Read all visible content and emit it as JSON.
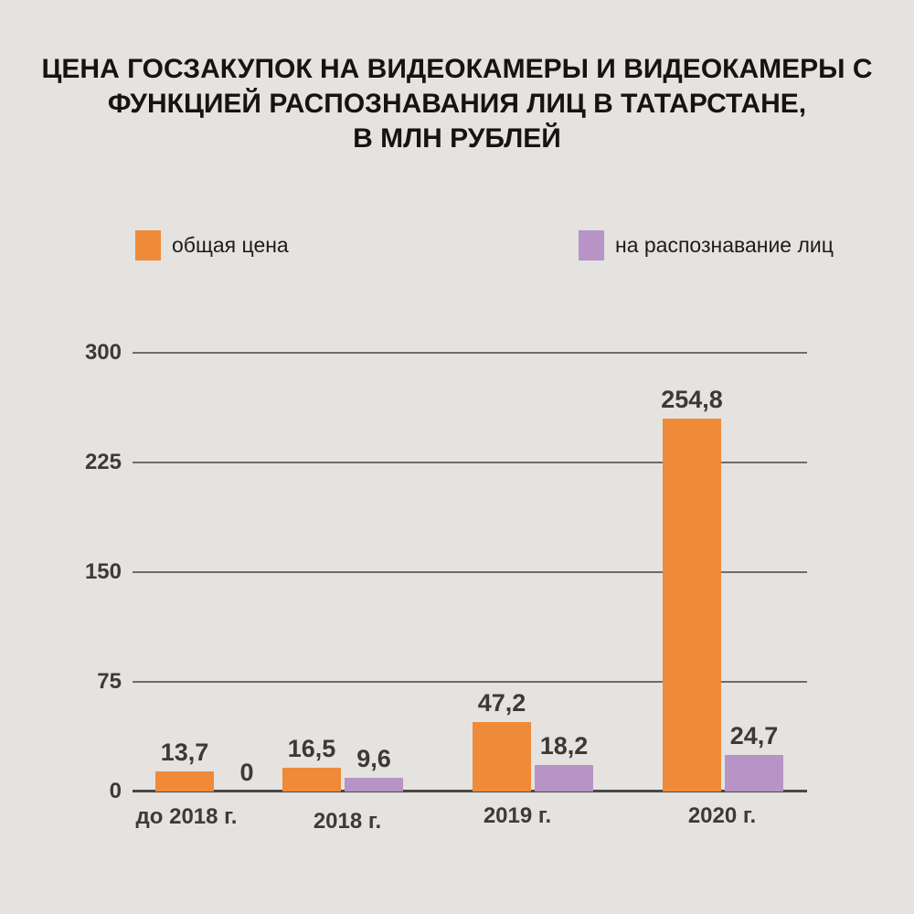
{
  "title": {
    "lines": [
      "ЦЕНА ГОСЗАКУПОК НА ВИДЕОКАМЕРЫ И ВИДЕОКАМЕРЫ С",
      "ФУНКЦИЕЙ РАСПОЗНАВАНИЯ ЛИЦ В ТАТАРСТАНЕ,",
      "В МЛН РУБЛЕЙ"
    ]
  },
  "legend": {
    "items": [
      {
        "label": "общая цена",
        "color": "#ef8a39"
      },
      {
        "label": "на распознавание лиц",
        "color": "#b893c5"
      }
    ]
  },
  "chart_data": {
    "type": "bar",
    "title": "ЦЕНА ГОСЗАКУПОК НА ВИДЕОКАМЕРЫ И ВИДЕОКАМЕРЫ С ФУНКЦИЕЙ РАСПОЗНАВАНИЯ ЛИЦ В ТАТАРСТАНЕ, В МЛН РУБЛЕЙ",
    "categories": [
      "до 2018 г.",
      "2018 г.",
      "2019 г.",
      "2020 г."
    ],
    "series": [
      {
        "name": "общая цена",
        "color": "#ef8a39",
        "values": [
          13.7,
          16.5,
          47.2,
          254.8
        ],
        "labels": [
          "13,7",
          "16,5",
          "47,2",
          "254,8"
        ]
      },
      {
        "name": "на распознавание лиц",
        "color": "#b893c5",
        "values": [
          0,
          9.6,
          18.2,
          24.7
        ],
        "labels": [
          "0",
          "9,6",
          "18,2",
          "24,7"
        ]
      }
    ],
    "y_axis": {
      "ticks": [
        300,
        225,
        150,
        75,
        0
      ],
      "ylim": [
        0,
        300
      ]
    },
    "xlabel": "",
    "ylabel": "млн рублей",
    "grid": true,
    "legend_position": "top"
  },
  "colors": {
    "background": "#e4e3df",
    "grid_line": "#6f6b67",
    "axis_line": "#4b4744",
    "value_text": "#3d3936",
    "title_text": "#161310"
  }
}
